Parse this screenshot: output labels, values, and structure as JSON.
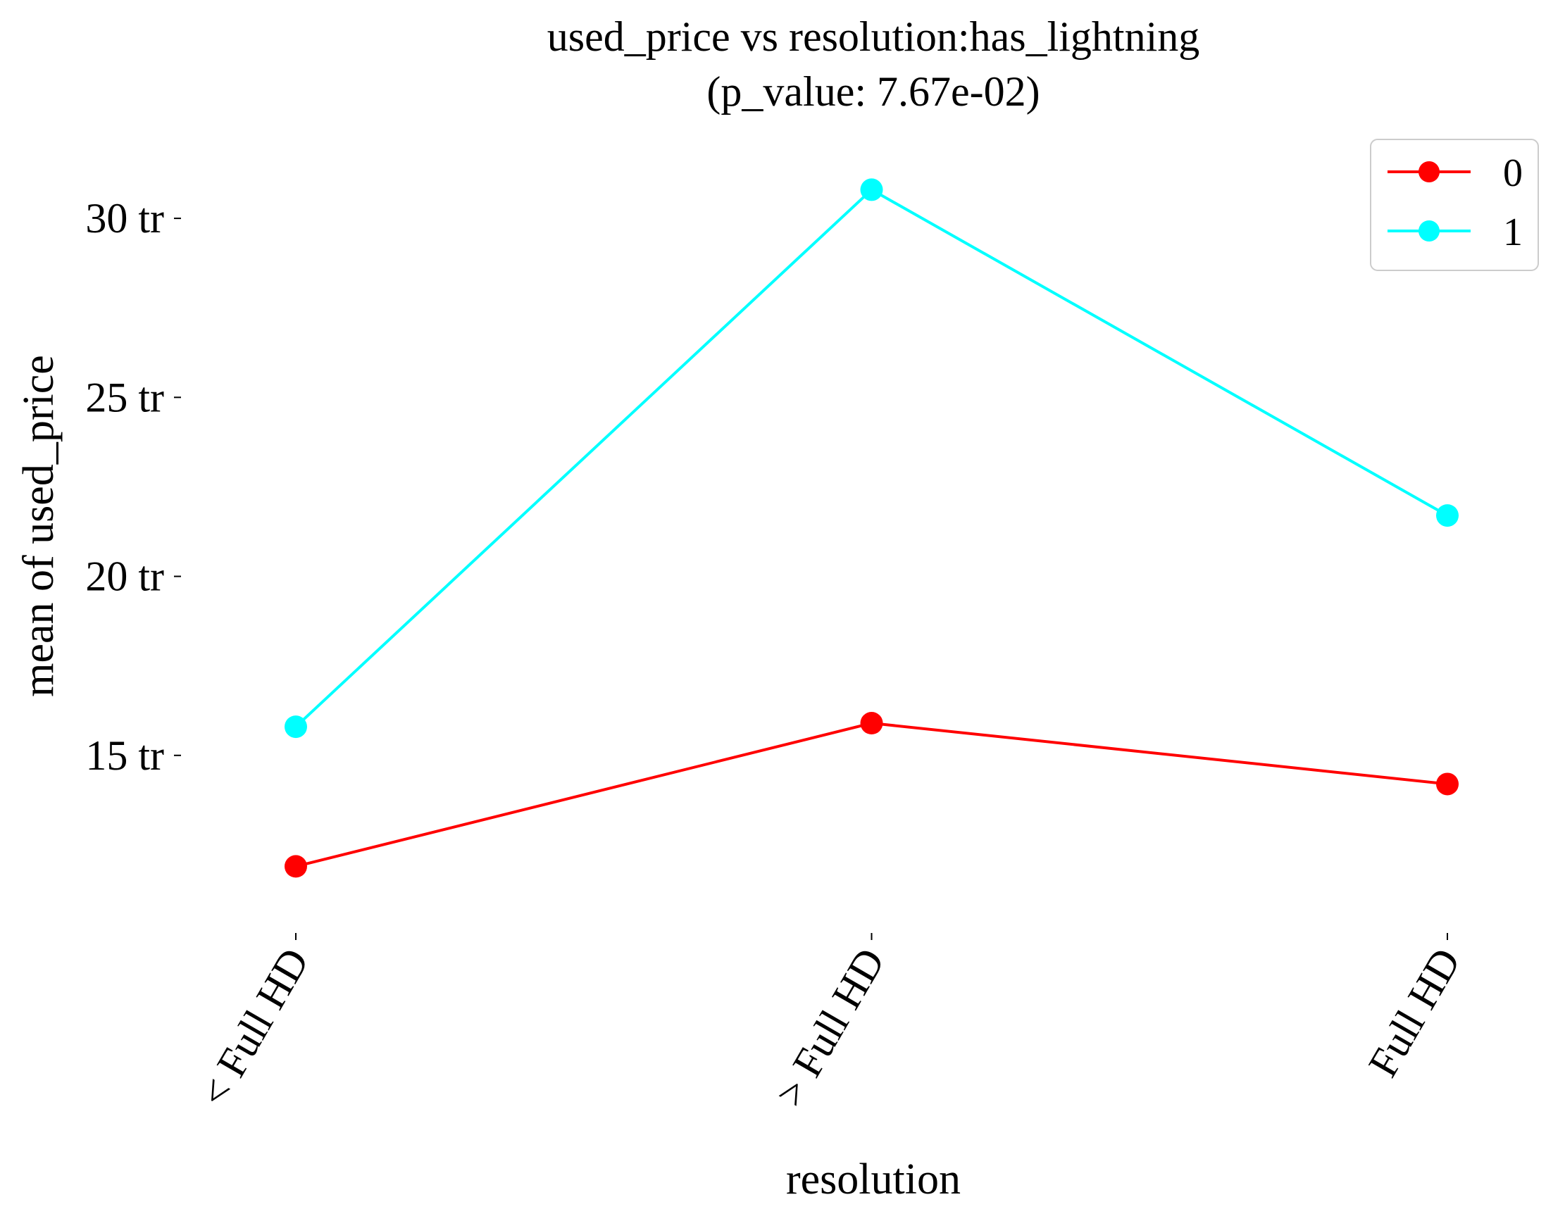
{
  "chart_data": {
    "type": "line",
    "title": "used_price vs resolution:has_lightning",
    "subtitle": "(p_value: 7.67e-02)",
    "xlabel": "resolution",
    "ylabel": "mean of used_price",
    "categories": [
      "< Full HD",
      "> Full HD",
      "Full HD"
    ],
    "ylim": [
      10,
      32.5
    ],
    "yticks": [
      {
        "value": 15,
        "label": "15 tr"
      },
      {
        "value": 20,
        "label": "20 tr"
      },
      {
        "value": 25,
        "label": "25 tr"
      },
      {
        "value": 30,
        "label": "30 tr"
      }
    ],
    "grid": false,
    "legend_position": "top-right",
    "series": [
      {
        "name": "0",
        "color": "#ff0000",
        "values": [
          11.9,
          15.9,
          14.2
        ]
      },
      {
        "name": "1",
        "color": "#00ffff",
        "values": [
          15.8,
          30.8,
          21.7
        ]
      }
    ]
  }
}
